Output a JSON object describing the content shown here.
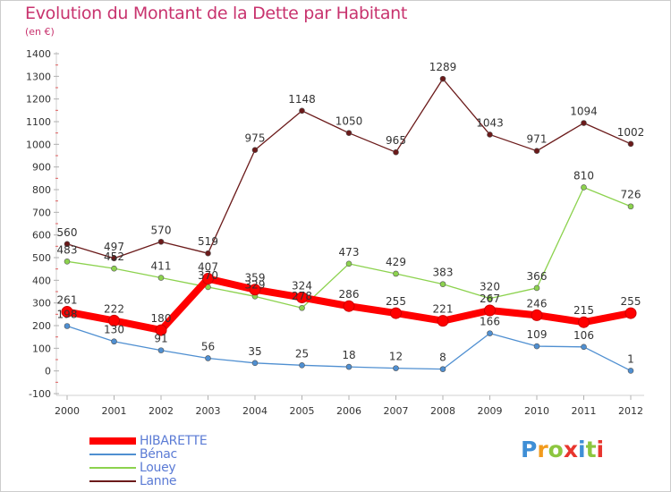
{
  "title": "Evolution du Montant de la Dette par Habitant",
  "subtitle": "(en €)",
  "logo": {
    "text": "Proxiti"
  },
  "chart_data": {
    "type": "line",
    "title": "Evolution du Montant de la Dette par Habitant",
    "subtitle": "(en €)",
    "xlabel": "",
    "ylabel": "",
    "x": [
      "2000",
      "2001",
      "2002",
      "2003",
      "2004",
      "2005",
      "2006",
      "2007",
      "2008",
      "2009",
      "2010",
      "2011",
      "2012"
    ],
    "ylim": [
      -100,
      1400
    ],
    "yticks": [
      -100,
      0,
      100,
      200,
      300,
      400,
      500,
      600,
      700,
      800,
      900,
      1000,
      1100,
      1200,
      1300,
      1400
    ],
    "grid": false,
    "legend_position": "bottom-left",
    "series": [
      {
        "name": "HIBARETTE",
        "color": "#ff0000",
        "values": [
          261,
          222,
          180,
          407,
          359,
          324,
          286,
          255,
          221,
          267,
          246,
          215,
          255
        ]
      },
      {
        "name": "Bénac",
        "color": "#4f8fd1",
        "values": [
          198,
          130,
          91,
          56,
          35,
          25,
          18,
          12,
          8,
          166,
          109,
          106,
          1
        ]
      },
      {
        "name": "Louey",
        "color": "#8cd24e",
        "values": [
          483,
          452,
          411,
          370,
          329,
          278,
          473,
          429,
          383,
          320,
          366,
          810,
          726
        ]
      },
      {
        "name": "Lanne",
        "color": "#6b1a1a",
        "values": [
          560,
          497,
          570,
          519,
          975,
          1148,
          1050,
          965,
          1289,
          1043,
          971,
          1094,
          1002
        ]
      }
    ]
  }
}
